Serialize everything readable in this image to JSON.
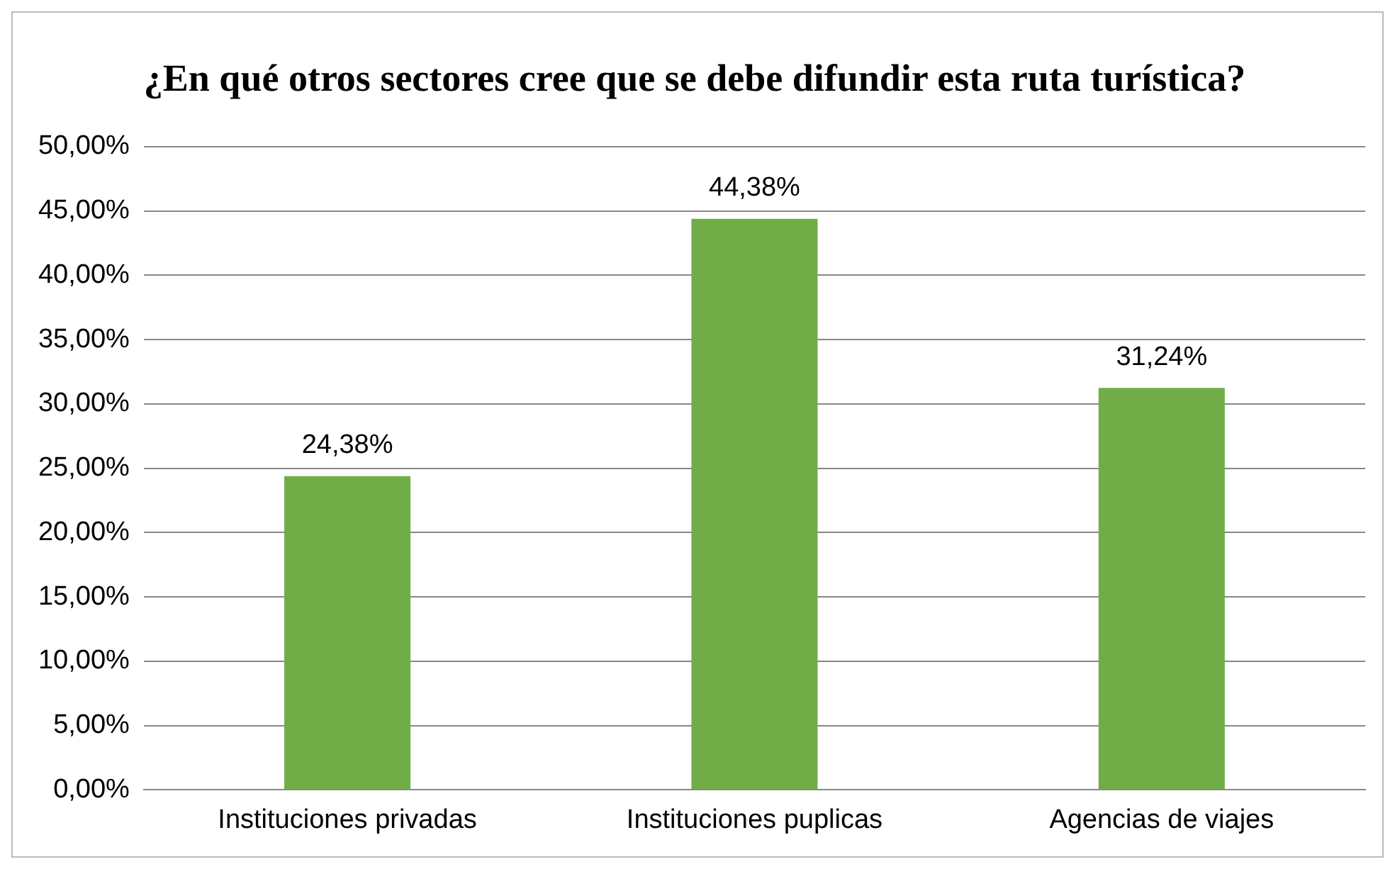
{
  "chart_data": {
    "type": "bar",
    "title": "¿En qué otros sectores cree que se debe difundir esta ruta turística?",
    "categories": [
      "Instituciones privadas",
      "Instituciones puplicas",
      "Agencias de viajes"
    ],
    "values": [
      24.38,
      44.38,
      31.24
    ],
    "value_labels": [
      "24,38%",
      "44,38%",
      "31,24%"
    ],
    "color": "#70ad47",
    "ylim": [
      0,
      50
    ],
    "yticks": [
      {
        "value": 0,
        "label": "0,00%"
      },
      {
        "value": 5,
        "label": "5,00%"
      },
      {
        "value": 10,
        "label": "10,00%"
      },
      {
        "value": 15,
        "label": "15,00%"
      },
      {
        "value": 20,
        "label": "20,00%"
      },
      {
        "value": 25,
        "label": "25,00%"
      },
      {
        "value": 30,
        "label": "30,00%"
      },
      {
        "value": 35,
        "label": "35,00%"
      },
      {
        "value": 40,
        "label": "40,00%"
      },
      {
        "value": 45,
        "label": "45,00%"
      },
      {
        "value": 50,
        "label": "50,00%"
      }
    ],
    "grid": "y"
  }
}
